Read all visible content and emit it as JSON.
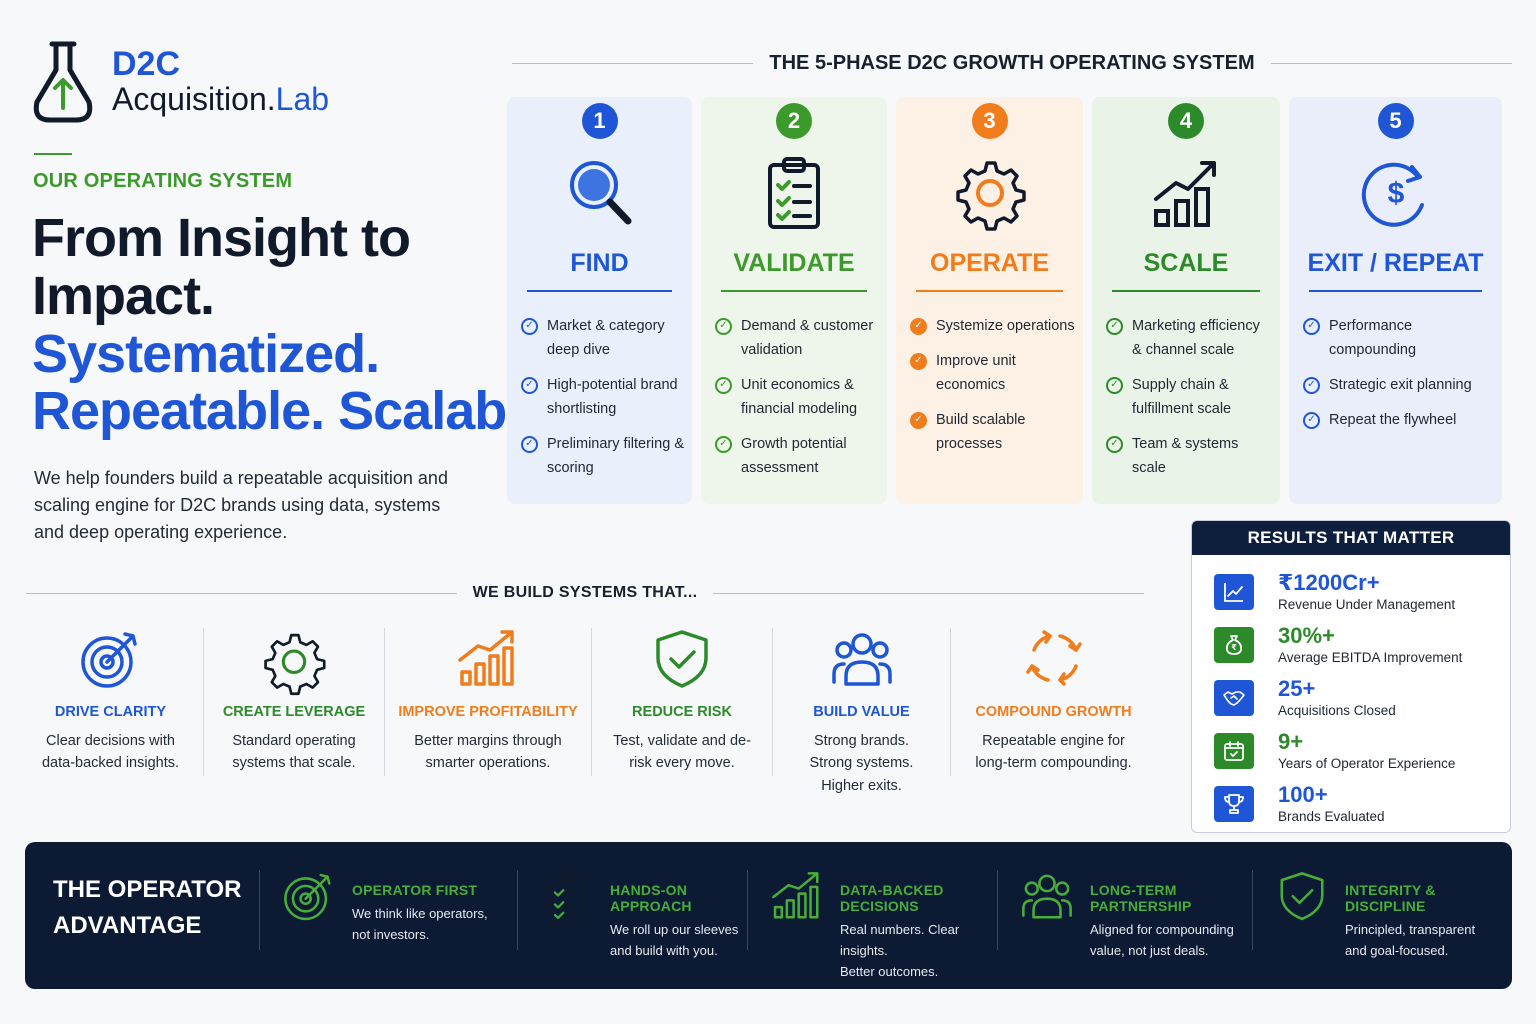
{
  "brand": {
    "line1": "D2C",
    "line2_main": "Acquisition.",
    "line2_accent": "Lab",
    "icon": "flask-arrow-icon"
  },
  "eyebrow": "OUR OPERATING SYSTEM",
  "hero": {
    "line1": "From Insight to",
    "line2": "Impact.",
    "line3": "Systematized.",
    "line4": "Repeatable. Scalable."
  },
  "intro": "We help founders build a repeatable acquisition and scaling engine for D2C brands using data, systems and deep operating experience.",
  "phases_title": "THE 5-PHASE D2C GROWTH OPERATING SYSTEM",
  "phases": [
    {
      "num": "1",
      "title": "FIND",
      "icon": "magnifier-icon",
      "color": "#1f56d6",
      "bg": "#eaf0fb",
      "items": [
        "Market & category deep dive",
        "High-potential brand shortlisting",
        "Preliminary filtering & scoring"
      ]
    },
    {
      "num": "2",
      "title": "VALIDATE",
      "icon": "clipboard-check-icon",
      "color": "#3c9a2c",
      "bg": "#eef5ea",
      "items": [
        "Demand & customer validation",
        "Unit economics & financial modeling",
        "Growth potential assessment"
      ]
    },
    {
      "num": "3",
      "title": "OPERATE",
      "icon": "gear-icon",
      "color": "#f07c1c",
      "bg": "#fdf1e6",
      "items": [
        "Systemize operations",
        "Improve unit economics",
        "Build scalable processes"
      ]
    },
    {
      "num": "4",
      "title": "SCALE",
      "icon": "growth-chart-icon",
      "color": "#2d8a2a",
      "bg": "#eaf3e8",
      "items": [
        "Marketing efficiency & channel scale",
        "Supply chain & fulfillment scale",
        "Team & systems scale"
      ]
    },
    {
      "num": "5",
      "title": "EXIT / REPEAT",
      "icon": "dollar-cycle-icon",
      "color": "#1f56d6",
      "bg": "#e9eefa",
      "items": [
        "Performance compounding",
        "Strategic exit planning",
        "Repeat the flywheel"
      ]
    }
  ],
  "builds_title": "WE BUILD SYSTEMS THAT...",
  "builds": [
    {
      "title": "DRIVE CLARITY",
      "desc": "Clear decisions with data-backed insights.",
      "color": "#1f56d6",
      "icon": "target-icon"
    },
    {
      "title": "CREATE LEVERAGE",
      "desc": "Standard operating systems that scale.",
      "color": "#2d8a2a",
      "icon": "gear-icon"
    },
    {
      "title": "IMPROVE PROFITABILITY",
      "desc": "Better margins through smarter operations.",
      "color": "#f07c1c",
      "icon": "bar-growth-icon"
    },
    {
      "title": "REDUCE RISK",
      "desc": "Test, validate and de-risk every move.",
      "color": "#2d8a2a",
      "icon": "shield-check-icon"
    },
    {
      "title": "BUILD VALUE",
      "desc": "Strong brands. Strong systems. Higher exits.",
      "color": "#1f56d6",
      "icon": "people-icon"
    },
    {
      "title": "COMPOUND GROWTH",
      "desc": "Repeatable engine for long-term compounding.",
      "color": "#f07c1c",
      "icon": "cycle-arrows-icon"
    }
  ],
  "results": {
    "title": "RESULTS THAT MATTER",
    "items": [
      {
        "value": "₹1200Cr+",
        "label": "Revenue Under Management",
        "color": "#1f56d6",
        "icon": "line-chart-icon"
      },
      {
        "value": "30%+",
        "label": "Average EBITDA Improvement",
        "color": "#2d8a2a",
        "icon": "money-bag-icon"
      },
      {
        "value": "25+",
        "label": "Acquisitions Closed",
        "color": "#1f56d6",
        "icon": "handshake-icon"
      },
      {
        "value": "9+",
        "label": "Years of Operator Experience",
        "color": "#2d8a2a",
        "icon": "calendar-icon"
      },
      {
        "value": "100+",
        "label": "Brands Evaluated",
        "color": "#1f56d6",
        "icon": "trophy-icon"
      }
    ]
  },
  "advantage": {
    "title_line1": "THE OPERATOR",
    "title_line2": "ADVANTAGE",
    "items": [
      {
        "title": "OPERATOR FIRST",
        "line1": "We think like operators,",
        "line2": "not investors.",
        "icon": "target-icon"
      },
      {
        "title": "HANDS-ON APPROACH",
        "line1": "We roll up our sleeves",
        "line2": "and build with you.",
        "icon": "clipboard-check-icon"
      },
      {
        "title": "DATA-BACKED DECISIONS",
        "line1": "Real numbers. Clear insights.",
        "line2": "Better outcomes.",
        "icon": "bar-growth-icon"
      },
      {
        "title": "LONG-TERM PARTNERSHIP",
        "line1": "Aligned for compounding",
        "line2": "value, not just deals.",
        "icon": "people-icon"
      },
      {
        "title": "INTEGRITY & DISCIPLINE",
        "line1": "Principled, transparent",
        "line2": "and goal-focused.",
        "icon": "shield-check-icon"
      }
    ]
  }
}
